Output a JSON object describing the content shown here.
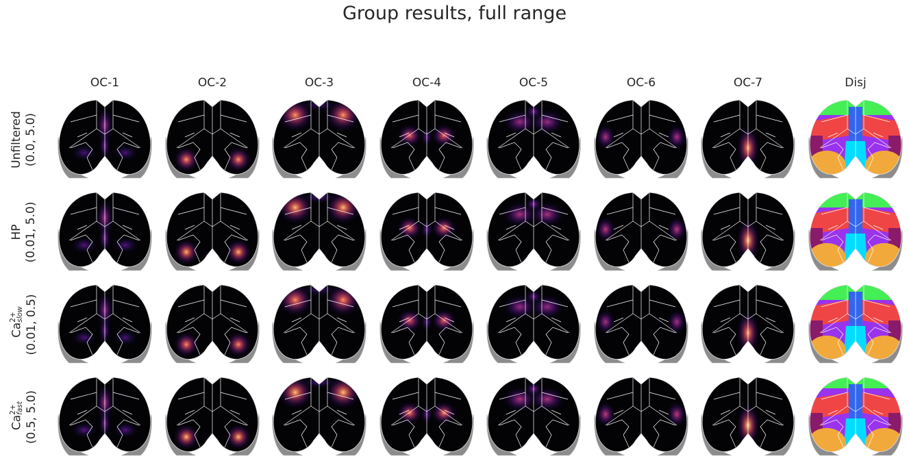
{
  "figure": {
    "title": "Group results, full range",
    "columns": [
      "OC-1",
      "OC-2",
      "OC-3",
      "OC-4",
      "OC-5",
      "OC-6",
      "OC-7",
      "Disj"
    ],
    "rows": [
      {
        "name": "Unfiltered",
        "sup": "",
        "sub": "",
        "range": "(0.0, 5.0)"
      },
      {
        "name": "HP",
        "sup": "",
        "sub": "",
        "range": "(0.01, 5.0)"
      },
      {
        "name": "Ca",
        "sup": "2+",
        "sub": "slow",
        "range": "(0.01, 0.5)"
      },
      {
        "name": "Ca",
        "sup": "2+",
        "sub": "fast",
        "range": "(0.5, 5.0)"
      }
    ],
    "colormap": "magma",
    "disjoint_colors": {
      "green": "#44ee55",
      "purple": "#9933ee",
      "red": "#f04545",
      "blue": "#3366ee",
      "magenta": "#8a1a6a",
      "cyan": "#00ddff",
      "orange": "#f2a93b"
    },
    "brain_colors": {
      "background": "#030205",
      "outline": "#ffffff",
      "cerebellum": "#8c8c8c"
    }
  }
}
